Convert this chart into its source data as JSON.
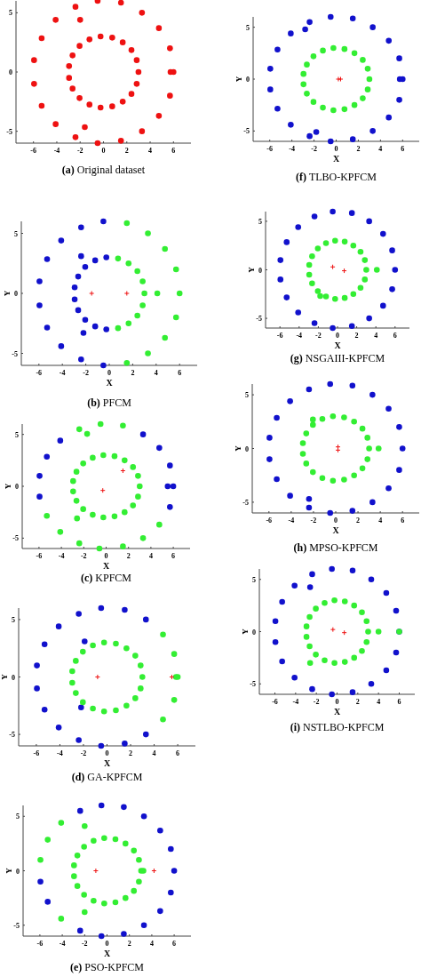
{
  "chart_data": [
    {
      "type": "scatter",
      "title": "(a) Original dataset",
      "xlim": [
        -7.5,
        7.5
      ],
      "ylim": [
        -6,
        6
      ],
      "xticks": [
        -6,
        -4,
        -2,
        0,
        2,
        4,
        6
      ],
      "yticks": [
        -5,
        0,
        5
      ],
      "series": [
        {
          "color": "#ee1111",
          "marker": "circle",
          "x": [
            3,
            2.85,
            2.4,
            1.65,
            0.75,
            -0.25,
            -1.2,
            -2.05,
            -2.65,
            -2.95,
            -2.95,
            -2.65,
            -2.05,
            -1.2,
            -0.25,
            0.75,
            1.65,
            2.4,
            2.85,
            6,
            5.75,
            5.7,
            4.75,
            3.3,
            1.5,
            -0.5,
            -2.4,
            -4.1,
            -5.3,
            -5.95,
            -5.95,
            -5.3,
            -4.1,
            -2.4,
            -0.5,
            1.5,
            3.3,
            4.75,
            5.7,
            -2,
            -1.6
          ],
          "values": [
            0,
            1,
            1.85,
            2.5,
            2.9,
            3,
            2.75,
            2.2,
            1.4,
            0.5,
            -0.5,
            -1.4,
            -2.2,
            -2.75,
            -3,
            -2.9,
            -2.5,
            -1.85,
            -1,
            0,
            0,
            2,
            3.7,
            5,
            5.85,
            6,
            5.5,
            4.4,
            2.85,
            1,
            -1,
            -2.85,
            -4.4,
            -5.5,
            -6,
            -5.8,
            -5,
            -3.7,
            -2,
            4.4,
            -4.65
          ]
        }
      ]
    },
    {
      "type": "scatter",
      "title": "(b) PFCM",
      "xlabel": "X",
      "ylabel": "Y",
      "xlim": [
        -7.5,
        7.5
      ],
      "ylim": [
        -6,
        6
      ],
      "xticks": [
        -6,
        -4,
        -2,
        0,
        2,
        4,
        6
      ],
      "yticks": [
        -5,
        0,
        5
      ],
      "series": [
        {
          "color": "#1111cc",
          "marker": "circle",
          "x": [
            -0.5,
            -2.4,
            -4.1,
            -5.3,
            -5.95,
            -5.95,
            -5.3,
            -4.1,
            -2.4,
            -0.5,
            -0.25,
            -1.2,
            -2.05,
            -2.65,
            -2.95,
            -2.95,
            -2.65,
            -2.05,
            -1.2,
            -0.25,
            -2.4,
            -2.2
          ],
          "values": [
            6,
            5.5,
            4.4,
            2.85,
            1,
            -1,
            -2.85,
            -4.4,
            -5.5,
            -6,
            3,
            2.75,
            2.2,
            1.4,
            0.5,
            -0.5,
            -1.4,
            -2.2,
            -2.75,
            -3,
            3.1,
            -3.3
          ]
        },
        {
          "color": "#33ee33",
          "marker": "circle",
          "x": [
            1.5,
            3.3,
            4.75,
            5.7,
            6,
            5.7,
            4.75,
            3.3,
            1.5,
            4.1,
            0.75,
            1.65,
            2.4,
            2.85,
            3,
            2.85,
            2.4,
            1.65,
            0.75
          ],
          "values": [
            5.85,
            5,
            3.7,
            2,
            0,
            -2,
            -3.7,
            -5,
            -5.8,
            0,
            2.9,
            2.5,
            1.85,
            1,
            0,
            -1,
            -1.85,
            -2.5,
            -2.9
          ]
        },
        {
          "color": "#ee1111",
          "marker": "cross",
          "x": [
            -1.5,
            1.5
          ],
          "values": [
            0,
            0
          ]
        }
      ]
    },
    {
      "type": "scatter",
      "title": "(c) KPFCM",
      "xlabel": "X",
      "ylabel": "Y",
      "xlim": [
        -7.5,
        7.5
      ],
      "ylim": [
        -6,
        6
      ],
      "xticks": [
        -6,
        -4,
        -2,
        0,
        2,
        4,
        6
      ],
      "yticks": [
        -5,
        0,
        5
      ],
      "series": [
        {
          "color": "#1111cc",
          "marker": "circle",
          "x": [
            -4.1,
            -5.3,
            -5.95,
            -5.95,
            3.3,
            4.75,
            5.7,
            5.5,
            6,
            5.7
          ],
          "values": [
            4.4,
            2.85,
            1,
            -1,
            5,
            3.7,
            2,
            0,
            0,
            -2
          ]
        },
        {
          "color": "#33ee33",
          "marker": "circle",
          "x": [
            3,
            2.85,
            2.4,
            1.65,
            0.75,
            -0.25,
            -1.2,
            -2.05,
            -2.65,
            -2.95,
            -2.95,
            -2.65,
            -2.05,
            -1.2,
            -0.25,
            0.75,
            1.65,
            2.4,
            2.85,
            -2.4,
            -1.7,
            -0.5,
            1.5,
            -5.3,
            -4.1,
            -2.4,
            -0.6,
            1.5,
            3.3,
            4.75,
            -2.6
          ],
          "values": [
            0,
            1,
            1.85,
            2.5,
            2.9,
            3,
            2.75,
            2.2,
            1.4,
            0.5,
            -0.5,
            -1.4,
            -2.2,
            -2.75,
            -3,
            -2.9,
            -2.5,
            -1.85,
            -1,
            5.5,
            5.05,
            6,
            5.85,
            -2.85,
            -4.4,
            -5.5,
            -6,
            -5.8,
            -5,
            -3.7,
            -3.1
          ]
        },
        {
          "color": "#ee1111",
          "marker": "cross",
          "x": [
            1.5,
            -0.3
          ],
          "values": [
            1.5,
            -0.4
          ]
        }
      ]
    },
    {
      "type": "scatter",
      "title": "(d) GA-KPFCM",
      "xlabel": "X",
      "ylabel": "Y",
      "xlim": [
        -7.5,
        7.5
      ],
      "ylim": [
        -6,
        6
      ],
      "xticks": [
        -6,
        -4,
        -2,
        0,
        2,
        4,
        6
      ],
      "yticks": [
        -5,
        0,
        5
      ],
      "series": [
        {
          "color": "#1111cc",
          "marker": "circle",
          "x": [
            3.3,
            1.5,
            -0.5,
            -2.4,
            -4.1,
            -5.3,
            -5.95,
            -5.95,
            -5.3,
            -4.1,
            -2.4,
            -0.5,
            1.5,
            3.3,
            -1.9,
            -2.2
          ],
          "values": [
            5,
            5.85,
            6,
            5.5,
            4.4,
            2.85,
            1,
            -1,
            -2.85,
            -4.4,
            -5.5,
            -6,
            -5.8,
            -5,
            3.1,
            -2.65
          ]
        },
        {
          "color": "#33ee33",
          "marker": "circle",
          "x": [
            3,
            2.85,
            2.4,
            1.65,
            0.75,
            -0.25,
            -1.2,
            -2.05,
            -2.65,
            -2.95,
            -2.95,
            -2.65,
            -2.05,
            -1.2,
            -0.25,
            0.75,
            1.65,
            2.4,
            2.85,
            4.75,
            5.7,
            5.85,
            6,
            5.7,
            4.75
          ],
          "values": [
            0,
            1,
            1.85,
            2.5,
            2.9,
            3,
            2.75,
            2.2,
            1.4,
            0.5,
            -0.5,
            -1.4,
            -2.2,
            -2.75,
            -3,
            -2.9,
            -2.5,
            -1.85,
            -1,
            3.7,
            2,
            0,
            0,
            -2,
            -3.7
          ]
        },
        {
          "color": "#ee1111",
          "marker": "cross",
          "x": [
            -0.8,
            5.5
          ],
          "values": [
            0,
            0
          ]
        }
      ]
    },
    {
      "type": "scatter",
      "title": "(e) PSO-KPFCM",
      "xlabel": "X",
      "ylabel": "Y",
      "xlim": [
        -7.5,
        7.5
      ],
      "ylim": [
        -6,
        6
      ],
      "xticks": [
        -6,
        -4,
        -2,
        0,
        2,
        4,
        6
      ],
      "yticks": [
        -5,
        0,
        5
      ],
      "series": [
        {
          "color": "#1111cc",
          "marker": "circle",
          "x": [
            1.5,
            3.3,
            4.75,
            5.7,
            6,
            5.7,
            4.75,
            3.3,
            1.5,
            -0.5,
            -2.4,
            -5.95,
            -5.3,
            -2.4,
            -0.5
          ],
          "values": [
            5.85,
            5,
            3.7,
            2,
            0,
            -2,
            -3.7,
            -5,
            -5.8,
            6,
            5.5,
            -1,
            -2.85,
            -5.5,
            -6
          ]
        },
        {
          "color": "#33ee33",
          "marker": "circle",
          "x": [
            3.05,
            2.85,
            2.4,
            1.65,
            0.75,
            -0.25,
            -1.2,
            -2.05,
            -2.65,
            -2.95,
            -2.95,
            -2.65,
            -2.05,
            -1.2,
            -0.25,
            0.75,
            1.65,
            2.4,
            2.85,
            3.25,
            -4.1,
            -5.3,
            -5.95,
            -2,
            -2,
            -4.1
          ],
          "values": [
            0,
            1,
            1.85,
            2.5,
            2.9,
            3,
            2.75,
            2.2,
            1.4,
            0.5,
            -0.5,
            -1.4,
            -2.2,
            -2.75,
            -3,
            -2.9,
            -2.5,
            -1.85,
            -1,
            0,
            4.4,
            2.85,
            1,
            4.1,
            -3.8,
            -4.4
          ]
        },
        {
          "color": "#ee1111",
          "marker": "cross",
          "x": [
            -1,
            4.2
          ],
          "values": [
            0,
            0
          ]
        }
      ]
    },
    {
      "type": "scatter",
      "title": "(f) TLBO-KPFCM",
      "xlabel": "X",
      "ylabel": "Y",
      "xlim": [
        -7.5,
        7.5
      ],
      "ylim": [
        -6,
        6
      ],
      "xticks": [
        -6,
        -4,
        -2,
        0,
        2,
        4,
        6
      ],
      "yticks": [
        -5,
        0,
        5
      ],
      "series": [
        {
          "color": "#1111cc",
          "marker": "circle",
          "x": [
            6,
            5.75,
            5.7,
            4.75,
            3.3,
            1.5,
            -0.5,
            -2.4,
            -4.1,
            -5.3,
            -5.95,
            -5.95,
            -5.3,
            -4.1,
            -2.4,
            -0.5,
            1.5,
            3.3,
            4.75,
            5.7,
            -2.8,
            -1.8
          ],
          "values": [
            0,
            0,
            2,
            3.7,
            5,
            5.85,
            6,
            5.5,
            4.4,
            2.85,
            1,
            -1,
            -2.85,
            -4.4,
            -5.5,
            -6,
            -5.8,
            -5,
            -3.7,
            -2,
            4.8,
            -5.1
          ]
        },
        {
          "color": "#33ee33",
          "marker": "circle",
          "x": [
            3,
            2.85,
            2.4,
            1.65,
            0.75,
            -0.25,
            -1.2,
            -2.05,
            -2.65,
            -2.95,
            -2.95,
            -2.65,
            -2.05,
            -1.2,
            -0.25,
            0.75,
            1.65,
            2.4,
            2.85
          ],
          "values": [
            0,
            1,
            1.85,
            2.5,
            2.9,
            3,
            2.75,
            2.2,
            1.4,
            0.5,
            -0.5,
            -1.4,
            -2.2,
            -2.75,
            -3,
            -2.9,
            -2.5,
            -1.85,
            -1
          ]
        },
        {
          "color": "#ee1111",
          "marker": "cross",
          "x": [
            0.2,
            0.4
          ],
          "values": [
            0,
            0
          ]
        }
      ]
    },
    {
      "type": "scatter",
      "title": "(g) NSGAIII-KPFCM",
      "xlabel": "X",
      "ylabel": "Y",
      "xlim": [
        -7.5,
        7.5
      ],
      "ylim": [
        -6,
        6
      ],
      "xticks": [
        -6,
        -4,
        -2,
        0,
        2,
        4,
        6
      ],
      "yticks": [
        -5,
        0,
        5
      ],
      "series": [
        {
          "color": "#1111cc",
          "marker": "circle",
          "x": [
            6,
            5.7,
            4.75,
            3.3,
            1.5,
            -0.5,
            -2.4,
            -4.1,
            -5.3,
            -5.95,
            -5.95,
            -5.3,
            -4.1,
            -2.4,
            -0.5,
            1.5,
            3.3,
            4.75,
            5.7
          ],
          "values": [
            0,
            2,
            3.7,
            5,
            5.85,
            6,
            5.5,
            4.4,
            2.85,
            1,
            -1,
            -2.85,
            -4.4,
            -5.5,
            -6,
            -5.8,
            -5,
            -3.7,
            -2
          ]
        },
        {
          "color": "#33ee33",
          "marker": "circle",
          "x": [
            3,
            2.85,
            2.4,
            1.65,
            0.75,
            -0.25,
            -1.2,
            -2.05,
            -2.65,
            -2.95,
            -2.95,
            -2.65,
            -2.05,
            -1.2,
            -0.25,
            0.75,
            1.65,
            2.4,
            2.85,
            4.1,
            -1.8
          ],
          "values": [
            0,
            1,
            1.85,
            2.5,
            2.9,
            3,
            2.75,
            2.2,
            1.4,
            0.5,
            -0.5,
            -1.4,
            -2.2,
            -2.75,
            -3,
            -2.9,
            -2.5,
            -1.85,
            -1,
            0,
            -2.7
          ]
        },
        {
          "color": "#ee1111",
          "marker": "cross",
          "x": [
            -0.5,
            0.7
          ],
          "values": [
            0.3,
            -0.1
          ]
        }
      ]
    },
    {
      "type": "scatter",
      "title": "(h) MPSO-KPFCM",
      "xlabel": "X",
      "ylabel": "Y",
      "xlim": [
        -7.5,
        7.5
      ],
      "ylim": [
        -6,
        6
      ],
      "xticks": [
        -6,
        -4,
        -2,
        0,
        2,
        4,
        6
      ],
      "yticks": [
        -5,
        0,
        5
      ],
      "series": [
        {
          "color": "#1111cc",
          "marker": "circle",
          "x": [
            6,
            5.7,
            4.75,
            3.3,
            1.5,
            -0.5,
            -2.4,
            -4.1,
            -5.3,
            -5.95,
            -5.95,
            -5.3,
            -4.1,
            -2.4,
            -0.5,
            1.5,
            3.3,
            4.75,
            5.7,
            -2.4
          ],
          "values": [
            0,
            2,
            3.7,
            5,
            5.85,
            6,
            5.5,
            4.4,
            2.85,
            1,
            -1,
            -2.85,
            -4.4,
            -5.5,
            -6,
            -5.8,
            -5,
            -3.7,
            -2,
            -4.7
          ]
        },
        {
          "color": "#33ee33",
          "marker": "circle",
          "x": [
            3,
            2.85,
            2.4,
            1.65,
            0.75,
            -0.25,
            -1.2,
            -2.05,
            -2.65,
            -2.95,
            -2.95,
            -2.65,
            -2.05,
            -1.2,
            -0.25,
            0.75,
            1.65,
            2.4,
            2.85,
            3.85,
            -2.05
          ],
          "values": [
            0,
            1,
            1.85,
            2.5,
            2.9,
            3,
            2.75,
            2.2,
            1.4,
            0.5,
            -0.5,
            -1.4,
            -2.2,
            -2.75,
            -3,
            -2.9,
            -2.5,
            -1.85,
            -1,
            0,
            2.7
          ]
        },
        {
          "color": "#ee1111",
          "marker": "cross",
          "x": [
            0.2,
            0.2
          ],
          "values": [
            0.15,
            -0.15
          ]
        }
      ]
    },
    {
      "type": "scatter",
      "title": "(i) NSTLBO-KPFCM",
      "xlabel": "X",
      "ylabel": "Y",
      "xlim": [
        -7.5,
        7.5
      ],
      "ylim": [
        -6,
        6
      ],
      "xticks": [
        -6,
        -4,
        -2,
        0,
        2,
        4,
        6
      ],
      "yticks": [
        -5,
        0,
        5
      ],
      "series": [
        {
          "color": "#1111cc",
          "marker": "circle",
          "x": [
            6,
            5.7,
            4.75,
            3.3,
            1.5,
            -0.5,
            -2.4,
            -4.1,
            -5.3,
            -5.95,
            -5.95,
            -5.3,
            -4.1,
            -2.4,
            -0.5,
            1.5,
            3.3,
            4.75,
            5.7,
            -2.6
          ],
          "values": [
            0,
            2,
            3.7,
            5,
            5.85,
            6,
            5.5,
            4.4,
            2.85,
            1,
            -1,
            -2.85,
            -4.4,
            -5.5,
            -6,
            -5.8,
            -5,
            -3.7,
            -2,
            4.25
          ]
        },
        {
          "color": "#33ee33",
          "marker": "circle",
          "x": [
            3,
            2.85,
            2.4,
            1.65,
            0.75,
            -0.25,
            -1.2,
            -2.05,
            -2.65,
            -2.95,
            -2.95,
            -2.65,
            -2.05,
            -1.2,
            -0.25,
            0.75,
            1.65,
            2.4,
            2.85,
            4,
            6,
            -2.6
          ],
          "values": [
            0,
            1,
            1.85,
            2.5,
            2.9,
            3,
            2.75,
            2.2,
            1.4,
            0.5,
            -0.5,
            -1.4,
            -2.2,
            -2.75,
            -3,
            -2.9,
            -2.5,
            -1.85,
            -1,
            0,
            0,
            -3
          ]
        },
        {
          "color": "#ee1111",
          "marker": "cross",
          "x": [
            -0.4,
            0.7
          ],
          "values": [
            0.2,
            -0.1
          ]
        }
      ]
    }
  ]
}
